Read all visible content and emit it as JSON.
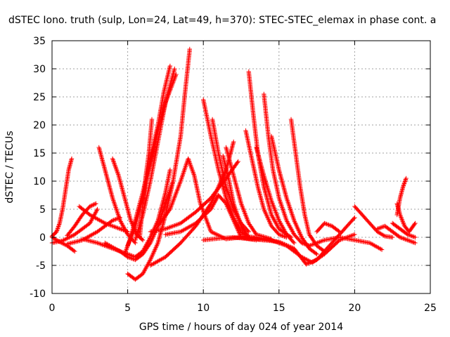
{
  "chart_data": {
    "type": "scatter",
    "title": "dSTEC Iono. truth (sulp, Lon=24, Lat=49, h=370): STEC-STEC_elemax in phase cont. a",
    "xlabel": "GPS time / hours of day 024 of year 2014",
    "ylabel": "dSTEC  / TECUs",
    "xlim": [
      0,
      25
    ],
    "ylim": [
      -10,
      35
    ],
    "x_ticks": [
      "0",
      "5",
      "10",
      "15",
      "20",
      "25"
    ],
    "y_ticks": [
      "-10",
      "-5",
      "0",
      "5",
      "10",
      "15",
      "20",
      "25",
      "30",
      "35"
    ],
    "grid": true,
    "marker": "+",
    "color": "#ff0000",
    "series": [
      {
        "points": [
          [
            0.0,
            0.2
          ],
          [
            0.3,
            1.0
          ],
          [
            0.5,
            2.5
          ],
          [
            0.7,
            5.0
          ],
          [
            0.9,
            8.5
          ],
          [
            1.1,
            12.0
          ],
          [
            1.3,
            14.0
          ]
        ]
      },
      {
        "points": [
          [
            0.0,
            0.0
          ],
          [
            0.5,
            -0.8
          ],
          [
            1.0,
            -1.5
          ],
          [
            1.5,
            -2.5
          ]
        ]
      },
      {
        "points": [
          [
            0.0,
            -1.0
          ],
          [
            0.7,
            -0.6
          ],
          [
            1.5,
            0.5
          ],
          [
            2.5,
            2.5
          ],
          [
            3.0,
            5.0
          ]
        ]
      },
      {
        "points": [
          [
            1.0,
            0.3
          ],
          [
            1.5,
            2.0
          ],
          [
            2.0,
            4.0
          ],
          [
            2.5,
            5.5
          ],
          [
            2.9,
            6.0
          ]
        ]
      },
      {
        "points": [
          [
            1.0,
            -1.2
          ],
          [
            2.0,
            -0.5
          ],
          [
            3.0,
            1.0
          ],
          [
            4.0,
            3.0
          ],
          [
            4.5,
            3.5
          ]
        ]
      },
      {
        "points": [
          [
            1.8,
            5.5
          ],
          [
            2.5,
            4.0
          ],
          [
            3.5,
            2.5
          ],
          [
            4.5,
            1.5
          ],
          [
            5.0,
            1.0
          ]
        ]
      },
      {
        "points": [
          [
            3.1,
            16.0
          ],
          [
            3.5,
            12.0
          ],
          [
            4.0,
            7.0
          ],
          [
            4.5,
            3.0
          ],
          [
            5.0,
            0.5
          ],
          [
            5.5,
            -1.0
          ]
        ]
      },
      {
        "points": [
          [
            4.0,
            14.0
          ],
          [
            4.4,
            11.0
          ],
          [
            4.8,
            7.0
          ],
          [
            5.2,
            3.0
          ],
          [
            5.6,
            0.5
          ],
          [
            6.0,
            -0.5
          ]
        ]
      },
      {
        "points": [
          [
            2.0,
            -0.3
          ],
          [
            3.0,
            -1.0
          ],
          [
            4.0,
            -2.0
          ],
          [
            5.0,
            -3.0
          ],
          [
            5.5,
            -3.5
          ],
          [
            6.0,
            -2.5
          ],
          [
            6.5,
            0.0
          ],
          [
            7.0,
            3.0
          ],
          [
            7.5,
            8.0
          ],
          [
            7.8,
            12.0
          ]
        ]
      },
      {
        "points": [
          [
            3.5,
            -1.0
          ],
          [
            4.5,
            -2.5
          ],
          [
            5.0,
            -3.5
          ],
          [
            5.5,
            -4.0
          ],
          [
            6.0,
            -3.0
          ],
          [
            6.5,
            -1.0
          ],
          [
            7.0,
            2.0
          ],
          [
            7.5,
            6.0
          ],
          [
            8.0,
            10.0
          ]
        ]
      },
      {
        "points": [
          [
            5.0,
            -6.5
          ],
          [
            5.5,
            -7.5
          ],
          [
            6.0,
            -6.5
          ],
          [
            6.5,
            -4.0
          ],
          [
            7.0,
            -1.0
          ],
          [
            7.5,
            4.0
          ],
          [
            8.0,
            10.0
          ],
          [
            8.5,
            18.0
          ],
          [
            8.8,
            26.0
          ],
          [
            9.1,
            33.5
          ]
        ]
      },
      {
        "points": [
          [
            4.8,
            -3.0
          ],
          [
            5.2,
            0.0
          ],
          [
            5.6,
            4.0
          ],
          [
            6.0,
            8.0
          ],
          [
            6.5,
            14.0
          ],
          [
            7.0,
            20.0
          ],
          [
            7.4,
            26.0
          ],
          [
            7.8,
            30.5
          ]
        ]
      },
      {
        "points": [
          [
            5.0,
            -1.5
          ],
          [
            5.5,
            2.0
          ],
          [
            6.0,
            7.0
          ],
          [
            6.5,
            13.0
          ],
          [
            7.0,
            19.0
          ],
          [
            7.6,
            25.0
          ],
          [
            8.1,
            30.0
          ]
        ]
      },
      {
        "points": [
          [
            5.5,
            -0.5
          ],
          [
            6.0,
            4.0
          ],
          [
            6.5,
            10.0
          ],
          [
            7.0,
            17.0
          ],
          [
            7.5,
            24.0
          ],
          [
            8.2,
            29.0
          ]
        ]
      },
      {
        "points": [
          [
            5.8,
            0.0
          ],
          [
            6.0,
            6.0
          ],
          [
            6.2,
            11.0
          ],
          [
            6.4,
            15.0
          ],
          [
            6.6,
            21.0
          ]
        ]
      },
      {
        "points": [
          [
            6.5,
            -5.0
          ],
          [
            7.5,
            -3.5
          ],
          [
            8.5,
            -1.0
          ],
          [
            9.5,
            2.0
          ],
          [
            10.5,
            6.0
          ],
          [
            11.5,
            12.0
          ],
          [
            12.0,
            17.0
          ]
        ]
      },
      {
        "points": [
          [
            6.5,
            1.0
          ],
          [
            7.5,
            1.5
          ],
          [
            8.5,
            2.5
          ],
          [
            9.5,
            4.5
          ],
          [
            10.5,
            7.0
          ],
          [
            11.5,
            10.5
          ],
          [
            12.3,
            13.5
          ]
        ]
      },
      {
        "points": [
          [
            7.0,
            2.0
          ],
          [
            7.8,
            5.0
          ],
          [
            8.5,
            10.0
          ],
          [
            9.0,
            14.0
          ],
          [
            9.4,
            11.0
          ],
          [
            9.8,
            6.0
          ],
          [
            10.5,
            1.0
          ],
          [
            11.5,
            -0.3
          ],
          [
            12.5,
            0.0
          ]
        ]
      },
      {
        "points": [
          [
            7.5,
            0.5
          ],
          [
            8.5,
            1.0
          ],
          [
            9.5,
            2.5
          ],
          [
            10.5,
            5.0
          ],
          [
            11.0,
            7.5
          ],
          [
            11.5,
            6.0
          ],
          [
            12.0,
            3.0
          ],
          [
            12.5,
            0.0
          ],
          [
            13.5,
            -0.5
          ]
        ]
      },
      {
        "points": [
          [
            10.0,
            24.5
          ],
          [
            10.5,
            18.0
          ],
          [
            11.0,
            12.0
          ],
          [
            11.5,
            7.0
          ],
          [
            12.0,
            3.5
          ],
          [
            12.5,
            1.0
          ],
          [
            13.0,
            0.0
          ]
        ]
      },
      {
        "points": [
          [
            10.6,
            21.0
          ],
          [
            11.0,
            15.0
          ],
          [
            11.5,
            9.0
          ],
          [
            12.0,
            5.0
          ],
          [
            12.5,
            2.5
          ],
          [
            13.0,
            1.0
          ]
        ]
      },
      {
        "points": [
          [
            11.3,
            14.5
          ],
          [
            11.7,
            10.0
          ],
          [
            12.0,
            6.0
          ],
          [
            12.5,
            2.0
          ],
          [
            13.0,
            0.0
          ],
          [
            14.0,
            -0.5
          ]
        ]
      },
      {
        "points": [
          [
            11.5,
            16.0
          ],
          [
            12.0,
            11.0
          ],
          [
            12.5,
            6.0
          ],
          [
            13.0,
            2.5
          ],
          [
            13.5,
            0.5
          ],
          [
            14.5,
            -0.3
          ]
        ]
      },
      {
        "points": [
          [
            12.8,
            19.0
          ],
          [
            13.2,
            14.0
          ],
          [
            13.6,
            9.0
          ],
          [
            14.0,
            5.0
          ],
          [
            14.5,
            2.0
          ],
          [
            15.0,
            0.5
          ],
          [
            15.5,
            0.0
          ]
        ]
      },
      {
        "points": [
          [
            13.0,
            29.5
          ],
          [
            13.3,
            22.0
          ],
          [
            13.6,
            15.0
          ],
          [
            14.0,
            9.0
          ],
          [
            14.5,
            4.0
          ],
          [
            15.0,
            1.5
          ],
          [
            15.8,
            0.0
          ]
        ]
      },
      {
        "points": [
          [
            13.5,
            16.0
          ],
          [
            14.0,
            11.0
          ],
          [
            14.5,
            6.5
          ],
          [
            15.0,
            3.0
          ],
          [
            15.5,
            0.5
          ],
          [
            16.0,
            -1.0
          ]
        ]
      },
      {
        "points": [
          [
            14.0,
            25.5
          ],
          [
            14.3,
            18.0
          ],
          [
            14.6,
            12.0
          ],
          [
            15.0,
            7.0
          ],
          [
            15.5,
            3.0
          ],
          [
            16.0,
            0.5
          ],
          [
            16.5,
            -1.0
          ],
          [
            17.0,
            -1.5
          ]
        ]
      },
      {
        "points": [
          [
            14.5,
            18.0
          ],
          [
            15.0,
            12.0
          ],
          [
            15.5,
            7.0
          ],
          [
            16.0,
            3.0
          ],
          [
            16.5,
            0.0
          ],
          [
            17.0,
            -2.0
          ],
          [
            17.5,
            -3.0
          ]
        ]
      },
      {
        "points": [
          [
            15.8,
            21.0
          ],
          [
            16.1,
            15.0
          ],
          [
            16.4,
            9.0
          ],
          [
            16.7,
            4.0
          ],
          [
            17.0,
            0.5
          ],
          [
            17.5,
            -1.5
          ],
          [
            18.0,
            -2.5
          ]
        ]
      },
      {
        "points": [
          [
            10.0,
            -0.5
          ],
          [
            11.0,
            -0.2
          ],
          [
            12.0,
            0.0
          ],
          [
            13.0,
            -0.3
          ],
          [
            14.0,
            -0.5
          ],
          [
            15.0,
            -0.8
          ],
          [
            16.0,
            -2.0
          ],
          [
            16.8,
            -4.8
          ],
          [
            17.5,
            -4.0
          ],
          [
            18.5,
            -1.0
          ],
          [
            19.5,
            2.0
          ],
          [
            20.0,
            3.5
          ]
        ]
      },
      {
        "points": [
          [
            12.5,
            0.2
          ],
          [
            13.5,
            0.0
          ],
          [
            14.5,
            -0.5
          ],
          [
            15.5,
            -1.5
          ],
          [
            16.5,
            -3.5
          ],
          [
            17.2,
            -4.5
          ],
          [
            18.0,
            -3.0
          ],
          [
            19.0,
            -0.5
          ],
          [
            20.0,
            0.5
          ]
        ]
      },
      {
        "points": [
          [
            17.5,
            1.0
          ],
          [
            18.0,
            2.5
          ],
          [
            18.5,
            2.0
          ],
          [
            19.0,
            1.0
          ]
        ]
      },
      {
        "points": [
          [
            17.0,
            -1.5
          ],
          [
            18.0,
            -0.5
          ],
          [
            19.0,
            0.0
          ],
          [
            20.0,
            -0.5
          ],
          [
            21.0,
            -1.0
          ],
          [
            21.8,
            -2.2
          ]
        ]
      },
      {
        "points": [
          [
            20.0,
            5.5
          ],
          [
            20.5,
            4.0
          ],
          [
            21.0,
            2.5
          ],
          [
            21.5,
            1.0
          ],
          [
            22.0,
            0.2
          ],
          [
            22.5,
            0.0
          ]
        ]
      },
      {
        "points": [
          [
            21.5,
            1.5
          ],
          [
            22.0,
            2.0
          ],
          [
            22.5,
            1.0
          ],
          [
            23.0,
            0.0
          ],
          [
            23.5,
            -0.5
          ],
          [
            24.0,
            -1.0
          ]
        ]
      },
      {
        "points": [
          [
            22.8,
            4.0
          ],
          [
            23.0,
            7.0
          ],
          [
            23.2,
            9.0
          ],
          [
            23.4,
            10.5
          ]
        ]
      },
      {
        "points": [
          [
            22.8,
            6.0
          ],
          [
            23.0,
            4.0
          ],
          [
            23.3,
            2.0
          ],
          [
            23.6,
            1.0
          ],
          [
            24.0,
            2.5
          ]
        ]
      },
      {
        "points": [
          [
            22.5,
            2.5
          ],
          [
            23.0,
            1.5
          ],
          [
            23.5,
            0.5
          ],
          [
            24.0,
            0.0
          ]
        ]
      }
    ]
  }
}
